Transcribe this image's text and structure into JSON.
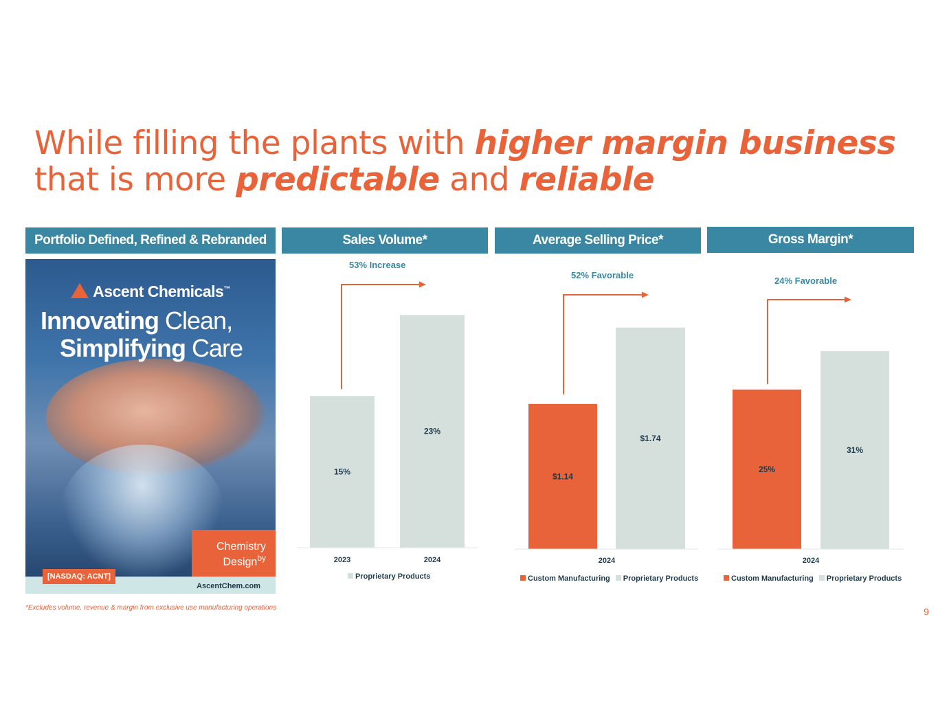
{
  "title": {
    "l1_plain": "While filling the plants with ",
    "l1_em": "higher margin business",
    "l2_plain1": "that is more ",
    "l2_em1": "predictable",
    "l2_plain2": " and ",
    "l2_em2": "reliable"
  },
  "headers": {
    "portfolio": "Portfolio Defined, Refined & Rebranded",
    "sales": "Sales Volume*",
    "asp": "Average Selling Price*",
    "gm": "Gross Margin*"
  },
  "poster": {
    "brand": "Ascent Chemicals",
    "tm": "™",
    "line1_bold": "Innovating",
    "line1_rest": " Clean,",
    "line2_bold": "Simplifying",
    "line2_rest": " Care",
    "cbd_1": "Chemistry",
    "cbd_by": "by",
    "cbd_2": "Design",
    "nasdaq": "[NASDAQ: ACNT]",
    "url": "AscentChem.com"
  },
  "colors": {
    "orange": "#e8633a",
    "grey": "#d5e0dd",
    "teal": "#3a87a3"
  },
  "chart_data": [
    {
      "type": "bar",
      "title": "Sales Volume*",
      "categories": [
        "2023",
        "2024"
      ],
      "series": [
        {
          "name": "Proprietary Products",
          "values": [
            15,
            23
          ],
          "labels": [
            "15%",
            "23%"
          ]
        }
      ],
      "annotation": "53% Increase",
      "legend": [
        "Proprietary Products"
      ],
      "ylim": [
        0,
        25
      ]
    },
    {
      "type": "bar",
      "title": "Average Selling Price*",
      "categories": [
        "2024"
      ],
      "series": [
        {
          "name": "Custom Manufacturing",
          "values": [
            1.14
          ],
          "labels": [
            "$1.14"
          ]
        },
        {
          "name": "Proprietary Products",
          "values": [
            1.74
          ],
          "labels": [
            "$1.74"
          ]
        }
      ],
      "annotation": "52% Favorable",
      "legend": [
        "Custom Manufacturing",
        "Proprietary Products"
      ],
      "ylim": [
        0,
        1.9
      ]
    },
    {
      "type": "bar",
      "title": "Gross Margin*",
      "categories": [
        "2024"
      ],
      "series": [
        {
          "name": "Custom Manufacturing",
          "values": [
            25
          ],
          "labels": [
            "25%"
          ]
        },
        {
          "name": "Proprietary Products",
          "values": [
            31
          ],
          "labels": [
            "31%"
          ]
        }
      ],
      "annotation": "24% Favorable",
      "legend": [
        "Custom Manufacturing",
        "Proprietary Products"
      ],
      "ylim": [
        0,
        36.5
      ]
    }
  ],
  "footnote": "*Excludes volume, revenue & margin from exclusive use manufacturing operations",
  "page_number": "9"
}
